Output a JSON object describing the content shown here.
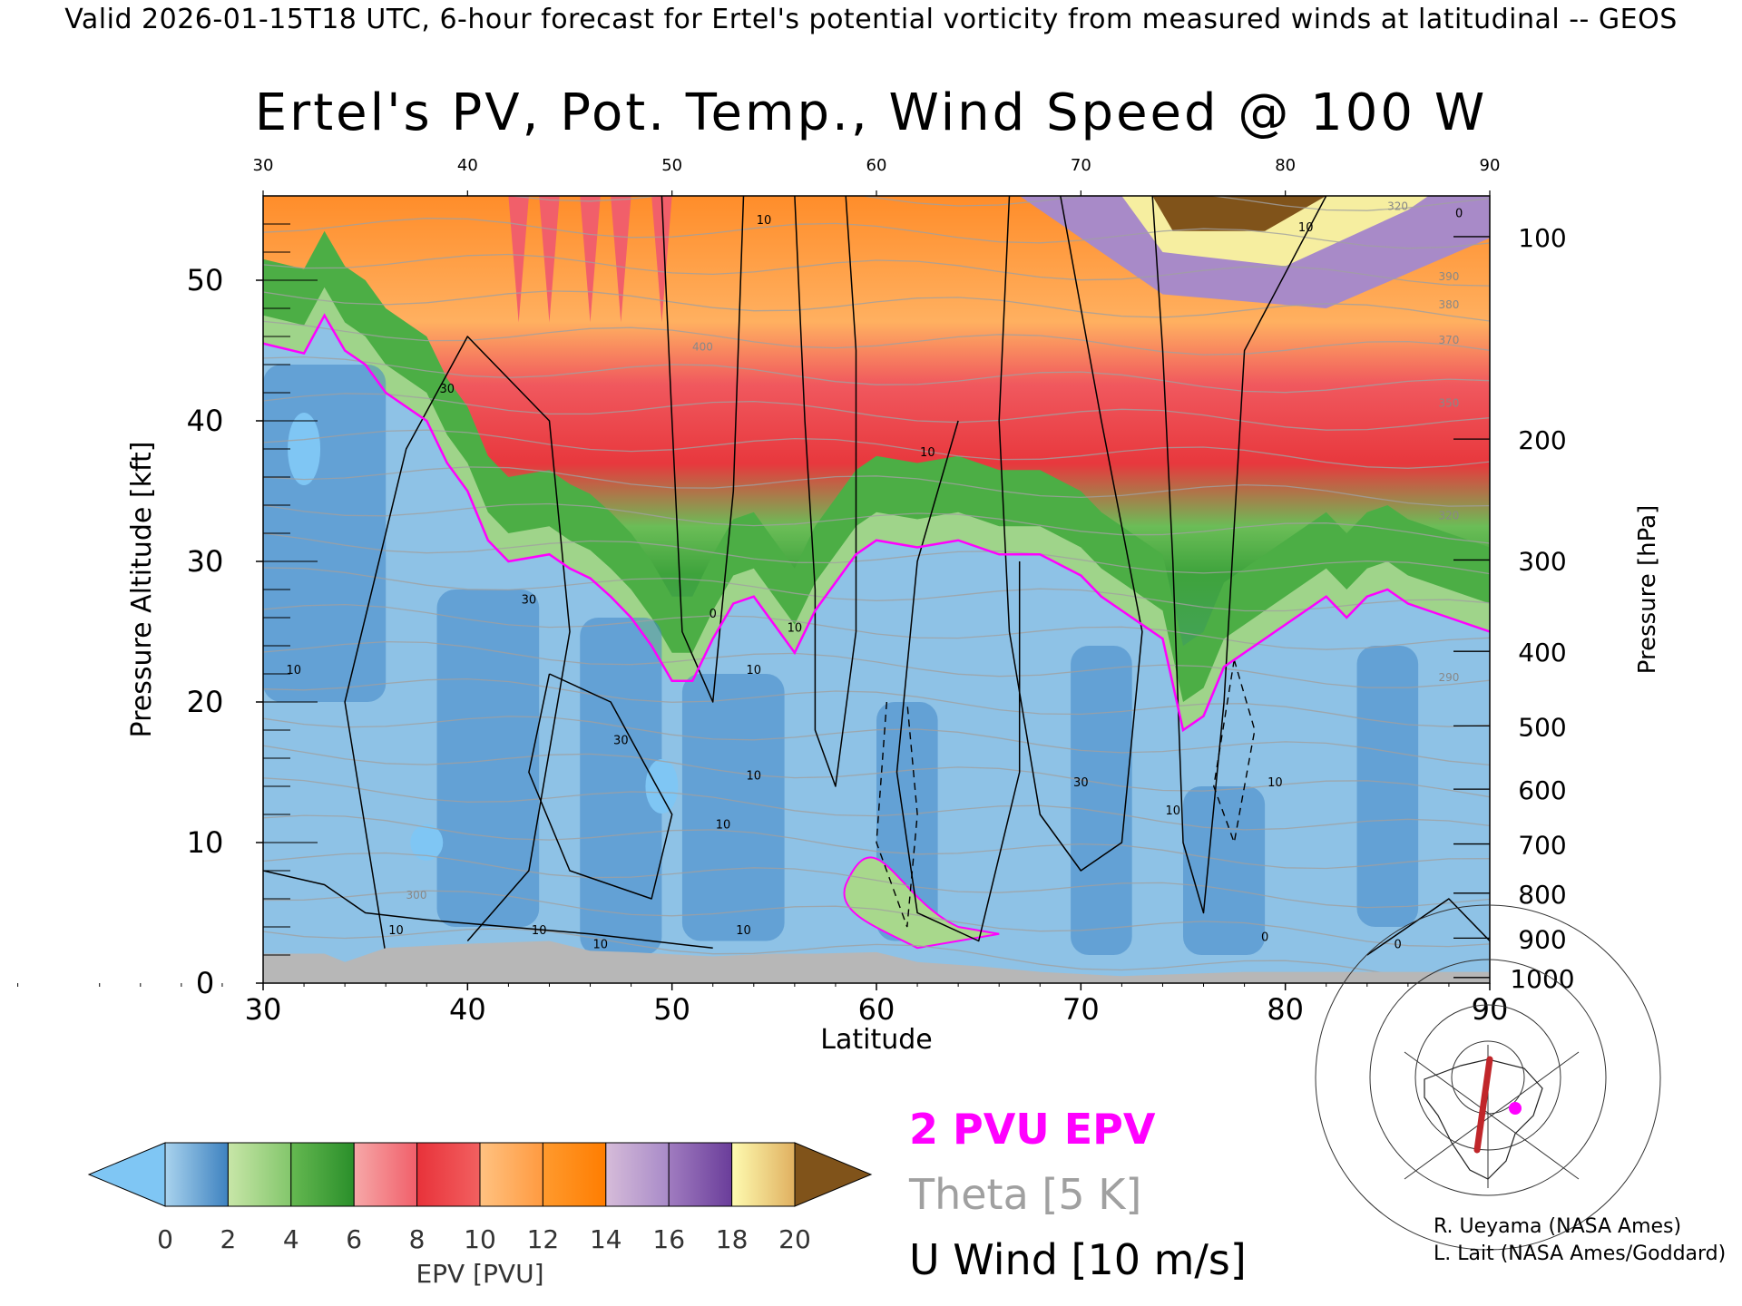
{
  "header": "Valid 2026-01-15T18 UTC, 6-hour forecast for Ertel's potential vorticity from measured winds at latitudinal -- GEOS",
  "chart_data": {
    "type": "heatmap",
    "title": "Ertel's PV, Pot. Temp., Wind Speed @ 100 W",
    "xlabel": "Latitude",
    "ylabel_left": "Pressure Altitude [kft]",
    "ylabel_right": "Pressure [hPa]",
    "xlim": [
      30,
      90
    ],
    "ylim": [
      0,
      56
    ],
    "x_ticks": [
      30,
      40,
      50,
      60,
      70,
      80,
      90
    ],
    "y_ticks": [
      0,
      10,
      20,
      30,
      40,
      50
    ],
    "pressure_ticks": [
      {
        "hPa": "100",
        "kft": 53.1
      },
      {
        "hPa": "200",
        "kft": 38.7
      },
      {
        "hPa": "300",
        "kft": 30.1
      },
      {
        "hPa": "400",
        "kft": 23.6
      },
      {
        "hPa": "500",
        "kft": 18.3
      },
      {
        "hPa": "600",
        "kft": 13.8
      },
      {
        "hPa": "700",
        "kft": 9.9
      },
      {
        "hPa": "800",
        "kft": 6.4
      },
      {
        "hPa": "900",
        "kft": 3.2
      },
      {
        "hPa": "1000",
        "kft": 0.4
      }
    ],
    "epv_2pvu_kft": [
      [
        30,
        45.5
      ],
      [
        32,
        44.8
      ],
      [
        33,
        47.5
      ],
      [
        34,
        45.0
      ],
      [
        35,
        44.0
      ],
      [
        36,
        42.0
      ],
      [
        38,
        40.0
      ],
      [
        39,
        37.0
      ],
      [
        40,
        35.0
      ],
      [
        41,
        31.5
      ],
      [
        42,
        30.0
      ],
      [
        44,
        30.5
      ],
      [
        45,
        29.5
      ],
      [
        46,
        28.8
      ],
      [
        47,
        27.5
      ],
      [
        48,
        26.0
      ],
      [
        49,
        24.0
      ],
      [
        50,
        21.5
      ],
      [
        51,
        21.5
      ],
      [
        52,
        24.5
      ],
      [
        53,
        27.0
      ],
      [
        54,
        27.5
      ],
      [
        55,
        25.5
      ],
      [
        56,
        23.5
      ],
      [
        57,
        26.5
      ],
      [
        58,
        28.5
      ],
      [
        59,
        30.5
      ],
      [
        60,
        31.5
      ],
      [
        62,
        31.0
      ],
      [
        64,
        31.5
      ],
      [
        66,
        30.5
      ],
      [
        68,
        30.5
      ],
      [
        70,
        29.0
      ],
      [
        71,
        27.5
      ],
      [
        72,
        26.5
      ],
      [
        74,
        24.5
      ],
      [
        75,
        18.0
      ],
      [
        76,
        19.0
      ],
      [
        77,
        22.5
      ],
      [
        78,
        23.5
      ],
      [
        79,
        24.5
      ],
      [
        80,
        25.5
      ],
      [
        81,
        26.5
      ],
      [
        82,
        27.5
      ],
      [
        83,
        26.0
      ],
      [
        84,
        27.5
      ],
      [
        85,
        28.0
      ],
      [
        86,
        27.0
      ],
      [
        88,
        26.0
      ],
      [
        90,
        25.0
      ]
    ],
    "contour_labels": [
      {
        "text": "10",
        "lat": 31.5,
        "kft": 22.0
      },
      {
        "text": "10",
        "lat": 36.5,
        "kft": 3.5
      },
      {
        "text": "10",
        "lat": 43.5,
        "kft": 3.5
      },
      {
        "text": "10",
        "lat": 46.5,
        "kft": 2.5
      },
      {
        "text": "10",
        "lat": 53.5,
        "kft": 3.5
      },
      {
        "text": "30",
        "lat": 39.0,
        "kft": 42.0
      },
      {
        "text": "30",
        "lat": 43.0,
        "kft": 27.0
      },
      {
        "text": "30",
        "lat": 47.5,
        "kft": 17.0
      },
      {
        "text": "10",
        "lat": 54.0,
        "kft": 22.0
      },
      {
        "text": "10",
        "lat": 52.5,
        "kft": 11.0
      },
      {
        "text": "10",
        "lat": 56.0,
        "kft": 25.0
      },
      {
        "text": "10",
        "lat": 54.0,
        "kft": 14.5
      },
      {
        "text": "0",
        "lat": 52.0,
        "kft": 26.0
      },
      {
        "text": "10",
        "lat": 62.5,
        "kft": 37.5
      },
      {
        "text": "10",
        "lat": 54.5,
        "kft": 54.0
      },
      {
        "text": "30",
        "lat": 70.0,
        "kft": 14.0
      },
      {
        "text": "10",
        "lat": 74.5,
        "kft": 12.0
      },
      {
        "text": "10",
        "lat": 81.0,
        "kft": 53.5
      },
      {
        "text": "0",
        "lat": 88.5,
        "kft": 54.5
      },
      {
        "text": "10",
        "lat": 79.5,
        "kft": 14.0
      },
      {
        "text": "0",
        "lat": 79.0,
        "kft": 3.0
      },
      {
        "text": "0",
        "lat": 85.5,
        "kft": 2.5
      }
    ],
    "theta_labels": [
      {
        "text": "300",
        "lat": 37.5,
        "kft": 6.0
      },
      {
        "text": "400",
        "lat": 51.5,
        "kft": 45.0
      },
      {
        "text": "290",
        "lat": 88.0,
        "kft": 21.5
      },
      {
        "text": "320",
        "lat": 88.0,
        "kft": 33.0
      },
      {
        "text": "350",
        "lat": 88.0,
        "kft": 41.0
      },
      {
        "text": "370",
        "lat": 88.0,
        "kft": 45.5
      },
      {
        "text": "380",
        "lat": 88.0,
        "kft": 48.0
      },
      {
        "text": "390",
        "lat": 88.0,
        "kft": 50.0
      },
      {
        "text": "320",
        "lat": 85.5,
        "kft": 55.0
      }
    ],
    "colorbar": {
      "label": "EPV [PVU]",
      "tick_labels": [
        "0",
        "2",
        "4",
        "6",
        "8",
        "10",
        "12",
        "14",
        "16",
        "18",
        "20"
      ],
      "under_color": "#7fc6f4",
      "over_color": "#80531a",
      "segments": [
        [
          "#a9d3ee",
          "#3e82c0"
        ],
        [
          "#c8e6a8",
          "#83c66b"
        ],
        [
          "#65b851",
          "#2a8f2a"
        ],
        [
          "#f6a8a8",
          "#f15f6a"
        ],
        [
          "#e8323a",
          "#f26060"
        ],
        [
          "#ffc281",
          "#ff9a40"
        ],
        [
          "#ff9a2e",
          "#ff7d00"
        ],
        [
          "#d6bcd9",
          "#a88ac8"
        ],
        [
          "#a07cc0",
          "#6a3d9a"
        ],
        [
          "#fefbb0",
          "#e0b060"
        ]
      ]
    }
  },
  "legend": {
    "epv": "2 PVU EPV",
    "theta": "Theta [5 K]",
    "u_wind": "U Wind [10 m/s]"
  },
  "credits": {
    "line1": "R. Ueyama (NASA Ames)",
    "line2": "L. Lait (NASA Ames/Goddard)"
  },
  "colors": {
    "epv_contour": "#ff00ff",
    "theta": "#a0a0a0",
    "terrain": "#b7b7b7",
    "transect": "#c0262a"
  }
}
